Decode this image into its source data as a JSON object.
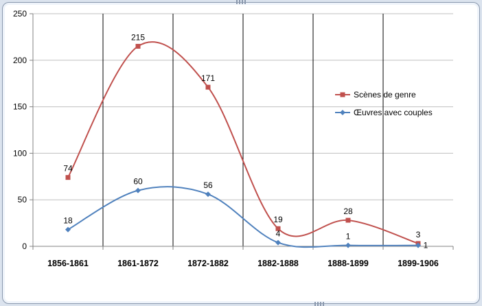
{
  "chart_data": {
    "type": "line",
    "categories": [
      "1856-1861",
      "1861-1872",
      "1872-1882",
      "1882-1888",
      "1888-1899",
      "1899-1906"
    ],
    "series": [
      {
        "name": "Scènes de genre",
        "values": [
          74,
          215,
          171,
          19,
          28,
          3
        ],
        "color": "#c0504d"
      },
      {
        "name": "Œuvres avec couples",
        "values": [
          18,
          60,
          56,
          4,
          1,
          1
        ],
        "color": "#4f81bd"
      }
    ],
    "ylim": [
      0,
      250
    ],
    "yticks": [
      0,
      50,
      100,
      150,
      200,
      250
    ],
    "xlabel": "",
    "ylabel": "",
    "title": "",
    "grid": true,
    "legend_position": "right",
    "smooth": true
  }
}
